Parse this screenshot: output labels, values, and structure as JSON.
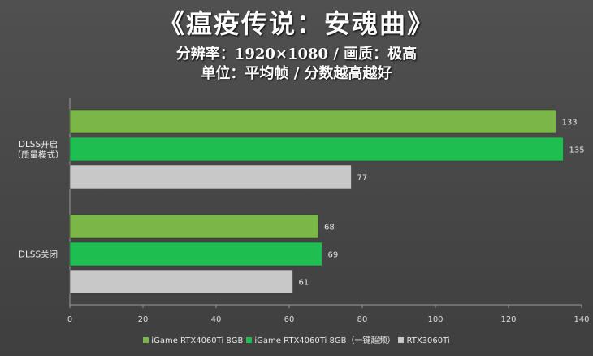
{
  "chart_data": {
    "type": "bar",
    "orientation": "horizontal",
    "title": "《瘟疫传说：安魂曲》",
    "subtitle": "分辨率：1920×1080 / 画质：极高",
    "subtitle2": "单位：平均帧 / 分数越高越好",
    "categories": [
      "DLSS开启\n（质量模式）",
      "DLSS关闭"
    ],
    "series": [
      {
        "name": "iGame RTX4060Ti 8GB",
        "color": "#7ab648",
        "values": [
          133,
          68
        ]
      },
      {
        "name": "iGame RTX4060Ti 8GB（一键超频）",
        "color": "#1fbe51",
        "values": [
          135,
          69
        ]
      },
      {
        "name": "RTX3060Ti",
        "color": "#c8c8c8",
        "values": [
          77,
          61
        ]
      }
    ],
    "xlim": [
      0,
      140
    ],
    "xticks": [
      "0",
      "20",
      "40",
      "60",
      "80",
      "100",
      "120",
      "140"
    ],
    "grid": false,
    "legend_position": "bottom"
  }
}
